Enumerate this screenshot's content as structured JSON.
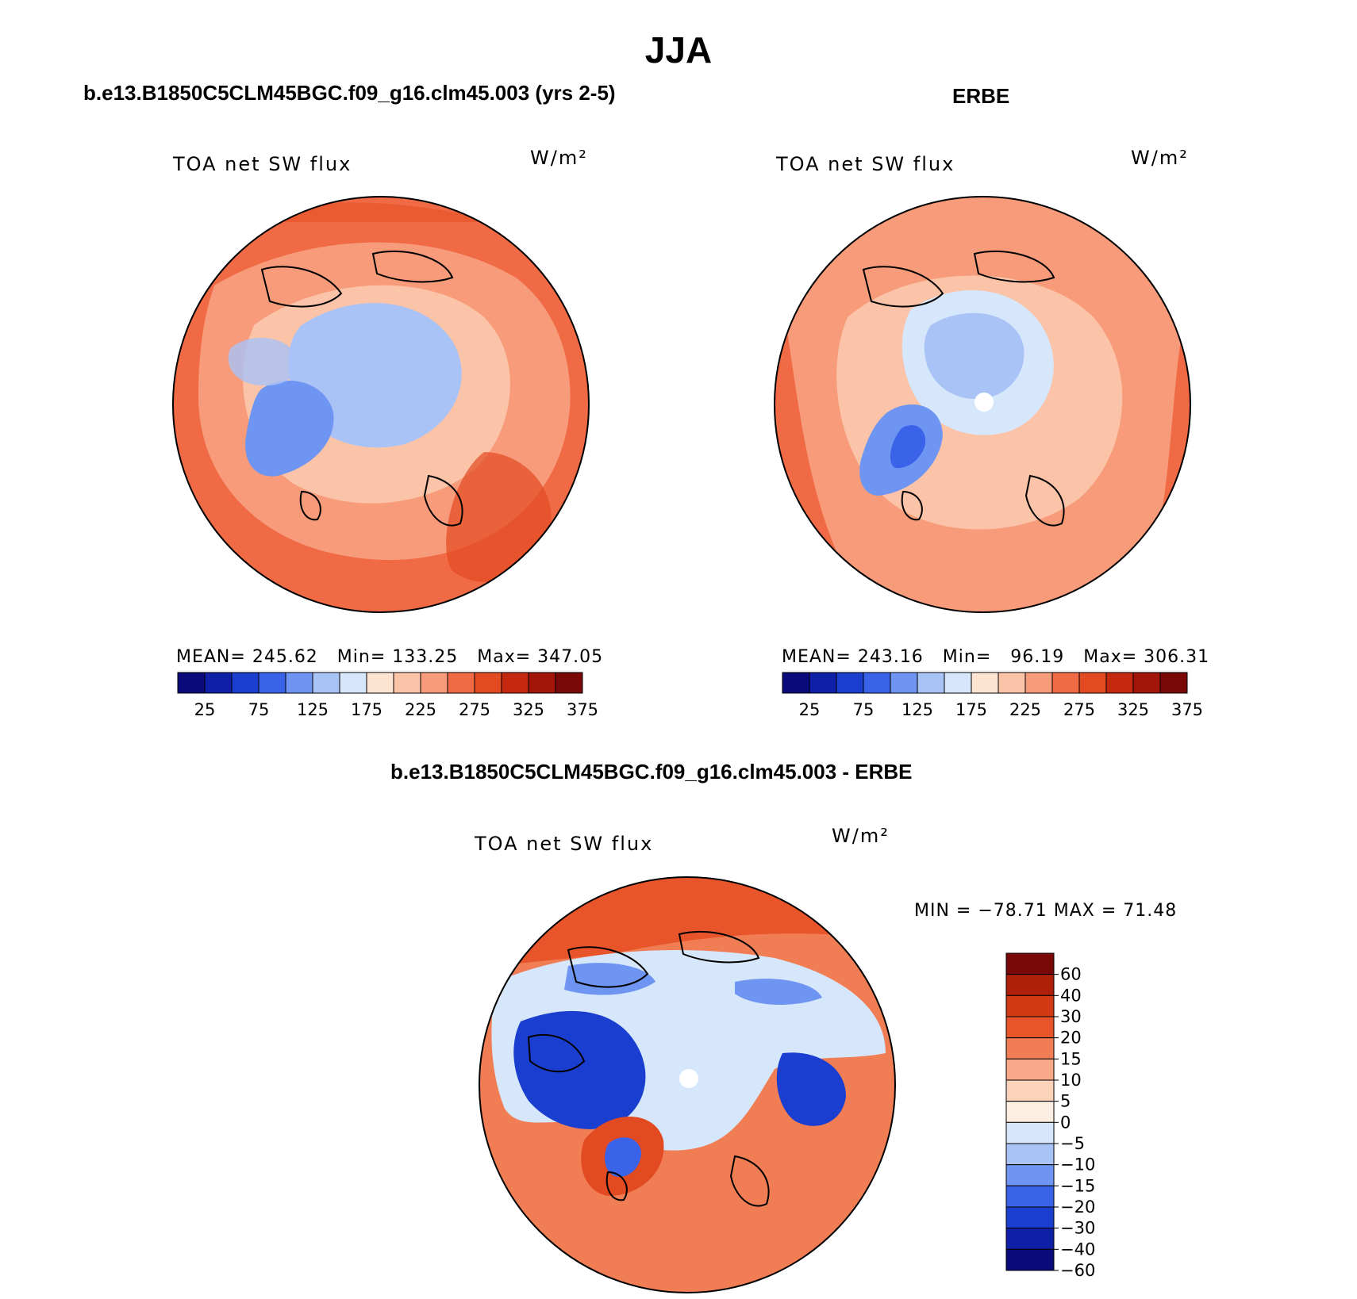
{
  "header": {
    "title": "JJA"
  },
  "panels": {
    "model": {
      "title": "b.e13.B1850C5CLM45BGC.f09_g16.clm45.003 (yrs 2-5)",
      "variable": "TOA net SW flux",
      "units": "W/m²",
      "stats": {
        "mean_label": "MEAN=",
        "mean": "245.62",
        "min_label": "Min=",
        "min": "133.25",
        "max_label": "Max=",
        "max": "347.05"
      }
    },
    "obs": {
      "title": "ERBE",
      "variable": "TOA net SW flux",
      "units": "W/m²",
      "stats": {
        "mean_label": "MEAN=",
        "mean": "243.16",
        "min_label": "Min=",
        "min": "96.19",
        "max_label": "Max=",
        "max": "306.31"
      }
    },
    "diff": {
      "title": "b.e13.B1850C5CLM45BGC.f09_g16.clm45.003 - ERBE",
      "variable": "TOA net SW flux",
      "units": "W/m²",
      "minmax_text": "MIN = −78.71 MAX =  71.48"
    }
  },
  "colors": {
    "abs_levels": [
      "#0a0a7a",
      "#0f1fa8",
      "#1a3fd0",
      "#3a63ea",
      "#6f95f2",
      "#a9c3f7",
      "#d6e6fb",
      "#fde4d2",
      "#fbc4a8",
      "#f79b7a",
      "#f06a45",
      "#e24a22",
      "#c4290f",
      "#a31508",
      "#7a0808"
    ],
    "diff_levels": [
      "#0a0a7a",
      "#0f1fa8",
      "#1a3fd0",
      "#3a63ea",
      "#6f95f2",
      "#a9c3f7",
      "#d6e6fb",
      "#fdeee2",
      "#fbd2ba",
      "#f9a889",
      "#f17d55",
      "#e8552a",
      "#d23a14",
      "#b01f0a",
      "#7a0808"
    ]
  },
  "chart_data": [
    {
      "type": "heatmap",
      "projection": "north-polar-stereographic",
      "title": "TOA net SW flux",
      "case": "b.e13.B1850C5CLM45BGC.f09_g16.clm45.003 (yrs 2-5)",
      "units": "W/m²",
      "mean": 245.62,
      "min": 133.25,
      "max": 347.05,
      "colorbar_ticks": [
        "25",
        "75",
        "125",
        "175",
        "225",
        "275",
        "325",
        "375"
      ],
      "colorbar_orientation": "horizontal"
    },
    {
      "type": "heatmap",
      "projection": "north-polar-stereographic",
      "title": "TOA net SW flux",
      "case": "ERBE",
      "units": "W/m²",
      "mean": 243.16,
      "min": 96.19,
      "max": 306.31,
      "colorbar_ticks": [
        "25",
        "75",
        "125",
        "175",
        "225",
        "275",
        "325",
        "375"
      ],
      "colorbar_orientation": "horizontal"
    },
    {
      "type": "heatmap",
      "projection": "north-polar-stereographic",
      "title": "TOA net SW flux",
      "case": "b.e13.B1850C5CLM45BGC.f09_g16.clm45.003 - ERBE",
      "units": "W/m²",
      "min": -78.71,
      "max": 71.48,
      "colorbar_ticks": [
        "60",
        "40",
        "30",
        "20",
        "15",
        "10",
        "5",
        "0",
        "−5",
        "−10",
        "−15",
        "−20",
        "−30",
        "−40",
        "−60"
      ],
      "colorbar_orientation": "vertical"
    }
  ]
}
